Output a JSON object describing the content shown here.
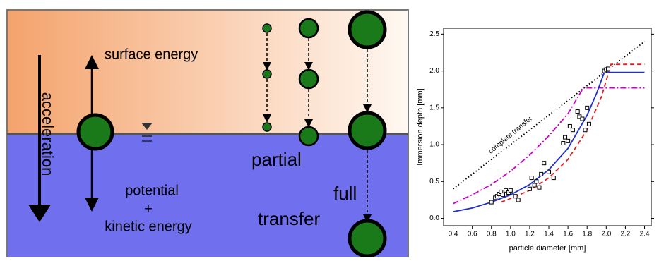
{
  "diagram": {
    "surface_label": "surface energy",
    "acceleration_label": "acceleration",
    "potential_label": "potential",
    "plus_label": "+",
    "kinetic_label": "kinetic energy",
    "partial_label": "partial",
    "full_label": "full",
    "transfer_label": "transfer"
  },
  "chart_data": {
    "type": "line",
    "ylabel": "Immersion depth [mm]",
    "xlabel": "particle diameter [mm]",
    "annotation": "complete transfer",
    "xlim": [
      0.3,
      2.47
    ],
    "ylim": [
      -0.1,
      2.58
    ],
    "xticks": [
      {
        "value": 0.4,
        "label": "0.4"
      },
      {
        "value": 0.6,
        "label": "0.6"
      },
      {
        "value": 0.8,
        "label": "0.8"
      },
      {
        "value": 1.0,
        "label": "1.0"
      },
      {
        "value": 1.2,
        "label": "1.2"
      },
      {
        "value": 1.4,
        "label": "1.4"
      },
      {
        "value": 1.6,
        "label": "1.6"
      },
      {
        "value": 1.8,
        "label": "1.8"
      },
      {
        "value": 2.0,
        "label": "2.0"
      },
      {
        "value": 2.2,
        "label": "2.2"
      },
      {
        "value": 2.4,
        "label": "2.4"
      }
    ],
    "yticks": [
      {
        "value": 0,
        "label": "0.0"
      },
      {
        "value": 0.5,
        "label": "0.5"
      },
      {
        "value": 1.0,
        "label": "1.0"
      },
      {
        "value": 1.5,
        "label": "1.5"
      },
      {
        "value": 2.0,
        "label": "2.0"
      },
      {
        "value": 2.5,
        "label": "2.5"
      }
    ],
    "series": [
      {
        "color": "#000000",
        "dash": "dotted",
        "x": [
          0.4,
          2.4
        ],
        "values": [
          0.4,
          2.4
        ]
      },
      {
        "color": "#cc00cc",
        "dash": "dashdot",
        "x": [
          0.4,
          0.6,
          0.8,
          1.0,
          1.2,
          1.4,
          1.6,
          1.76,
          2.4
        ],
        "values": [
          0.2,
          0.32,
          0.46,
          0.64,
          0.86,
          1.12,
          1.42,
          1.77,
          1.77
        ]
      },
      {
        "color": "#e02020",
        "dash": "dashed",
        "x": [
          0.9,
          1.0,
          1.2,
          1.4,
          1.6,
          1.8,
          1.95,
          2.05,
          2.4
        ],
        "values": [
          0.22,
          0.27,
          0.38,
          0.55,
          0.8,
          1.2,
          1.65,
          2.09,
          2.09
        ]
      },
      {
        "color": "#1f2fd0",
        "dash": "solid",
        "x": [
          0.4,
          0.6,
          0.8,
          1.0,
          1.2,
          1.4,
          1.6,
          1.8,
          1.9,
          1.98,
          2.4
        ],
        "values": [
          0.09,
          0.14,
          0.22,
          0.32,
          0.46,
          0.66,
          0.95,
          1.4,
          1.7,
          1.98,
          1.98
        ]
      },
      {
        "color": "#000000",
        "dash": "none",
        "marker": true,
        "x": [
          0.8,
          0.84,
          0.86,
          0.88,
          0.9,
          0.92,
          0.95,
          0.98,
          1.0,
          1.05,
          1.08,
          1.2,
          1.22,
          1.25,
          1.27,
          1.3,
          1.32,
          1.35,
          1.4,
          1.45,
          1.55,
          1.57,
          1.6,
          1.62,
          1.65,
          1.7,
          1.72,
          1.75,
          1.78,
          1.8,
          1.82,
          1.98,
          2.0,
          2.02
        ],
        "values": [
          0.22,
          0.28,
          0.3,
          0.33,
          0.36,
          0.32,
          0.38,
          0.35,
          0.38,
          0.3,
          0.25,
          0.4,
          0.55,
          0.45,
          0.5,
          0.42,
          0.6,
          0.75,
          0.63,
          0.55,
          1.02,
          1.1,
          1.05,
          1.25,
          1.2,
          1.45,
          1.38,
          1.35,
          1.2,
          1.5,
          1.28,
          2.0,
          2.02,
          2.03
        ]
      }
    ]
  }
}
